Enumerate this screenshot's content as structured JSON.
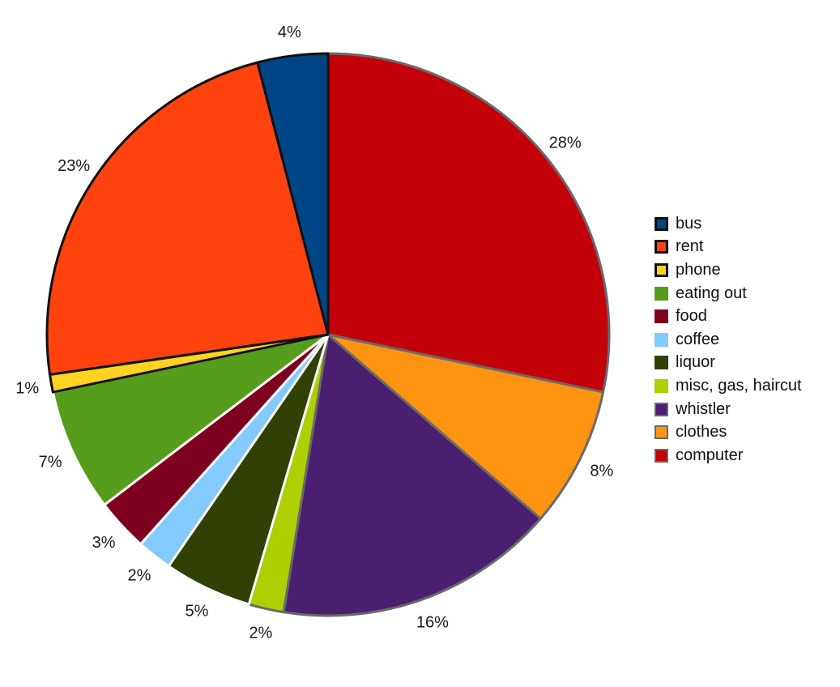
{
  "chart_data": {
    "type": "pie",
    "title": "",
    "start": "12 o'clock",
    "direction": "clockwise",
    "legend_position": "right",
    "slices": [
      {
        "name": "computer",
        "value": 28,
        "label": "28%",
        "color": "#c3000a",
        "edge": "#6a6a6a"
      },
      {
        "name": "clothes",
        "value": 8,
        "label": "8%",
        "color": "#ff9312",
        "edge": "#6a6a6a"
      },
      {
        "name": "whistler",
        "value": 16,
        "label": "16%",
        "color": "#4b1f6f",
        "edge": "#6a6a6a"
      },
      {
        "name": "misc, gas, haircut",
        "value": 2,
        "label": "2%",
        "color": "#aecf00",
        "edge": "#6a6a6a"
      },
      {
        "name": "liquor",
        "value": 5,
        "label": "5%",
        "color": "#314004",
        "edge": "#ffffff"
      },
      {
        "name": "coffee",
        "value": 2,
        "label": "2%",
        "color": "#83caff",
        "edge": "#ffffff"
      },
      {
        "name": "food",
        "value": 3,
        "label": "3%",
        "color": "#7e0021",
        "edge": "#ffffff"
      },
      {
        "name": "eating out",
        "value": 7,
        "label": "7%",
        "color": "#579d1c",
        "edge": "#ffffff"
      },
      {
        "name": "phone",
        "value": 1,
        "label": "1%",
        "color": "#ffd320",
        "edge": "#111111"
      },
      {
        "name": "rent",
        "value": 23,
        "label": "23%",
        "color": "#ff420e",
        "edge": "#111111"
      },
      {
        "name": "bus",
        "value": 4,
        "label": "4%",
        "color": "#004586",
        "edge": "#111111"
      }
    ]
  },
  "legend": [
    {
      "label": "bus",
      "color": "#004586",
      "border": "thick"
    },
    {
      "label": "rent",
      "color": "#ff420e",
      "border": "thick"
    },
    {
      "label": "phone",
      "color": "#ffd320",
      "border": "thick"
    },
    {
      "label": "eating out",
      "color": "#579d1c",
      "border": "none"
    },
    {
      "label": "food",
      "color": "#7e0021",
      "border": "none"
    },
    {
      "label": "coffee",
      "color": "#83caff",
      "border": "none"
    },
    {
      "label": "liquor",
      "color": "#314004",
      "border": "none"
    },
    {
      "label": "misc, gas, haircut",
      "color": "#aecf00",
      "border": "none"
    },
    {
      "label": "whistler",
      "color": "#4b1f6f",
      "border": "thin"
    },
    {
      "label": "clothes",
      "color": "#ff9312",
      "border": "thin"
    },
    {
      "label": "computer",
      "color": "#c3000a",
      "border": "thin"
    }
  ]
}
